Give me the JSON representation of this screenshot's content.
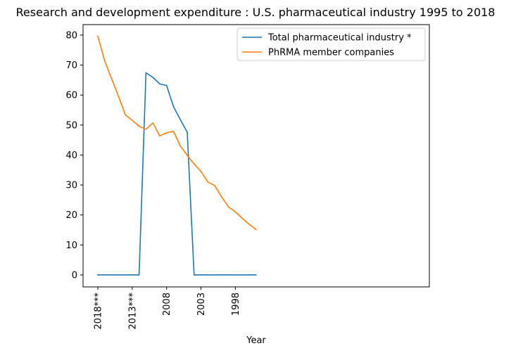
{
  "chart_data": {
    "type": "line",
    "title": "Research and development expenditure : U.S. pharmaceutical industry 1995 to 2018",
    "xlabel": "Year",
    "ylabel": "",
    "categories": [
      "2018***",
      "2017",
      "2016",
      "2015",
      "2014",
      "2013***",
      "2012",
      "2011",
      "2010",
      "2009",
      "2008",
      "2007",
      "2006",
      "2005",
      "2004",
      "2003",
      "2002",
      "2001",
      "2000",
      "1999",
      "1998",
      "1997",
      "1996",
      "1995"
    ],
    "x_tick_labels": [
      "2018***",
      "2013***",
      "2008",
      "2003",
      "1998"
    ],
    "y_ticks": [
      0,
      10,
      20,
      30,
      40,
      50,
      60,
      70,
      80
    ],
    "ylim": [
      -4,
      83.5
    ],
    "grid": false,
    "legend_position": "top-right",
    "series": [
      {
        "name": "Total pharmaceutical industry *",
        "color": "#1f77b4",
        "values": [
          0,
          0,
          0,
          0,
          0,
          0,
          0,
          67.4,
          65.9,
          63.7,
          63.2,
          56.1,
          51.8,
          47.6,
          0,
          0,
          0,
          0,
          0,
          0,
          0,
          0,
          0,
          0
        ]
      },
      {
        "name": "PhRMA member companies",
        "color": "#ff7f0e",
        "values": [
          79.6,
          71.4,
          65.5,
          59.6,
          53.4,
          51.6,
          49.6,
          48.6,
          50.7,
          46.4,
          47.4,
          47.9,
          43.0,
          39.9,
          37.0,
          34.5,
          31.0,
          29.8,
          26.0,
          22.7,
          21.0,
          18.9,
          16.9,
          15.2
        ]
      }
    ]
  }
}
